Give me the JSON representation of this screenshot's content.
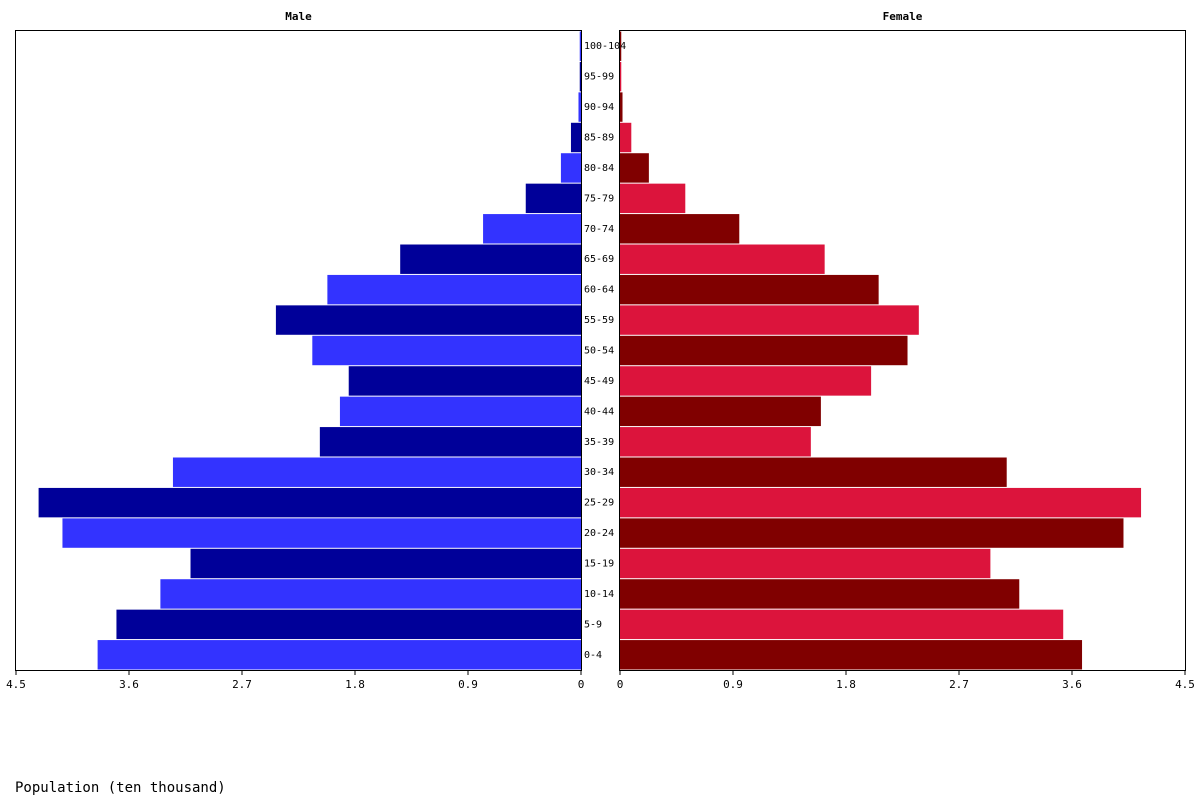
{
  "chart_data": {
    "type": "pyramid",
    "xlabel": "Population (ten thousand)",
    "categories": [
      "0-4",
      "5-9",
      "10-14",
      "15-19",
      "20-24",
      "25-29",
      "30-34",
      "35-39",
      "40-44",
      "45-49",
      "50-54",
      "55-59",
      "60-64",
      "65-69",
      "70-74",
      "75-79",
      "80-84",
      "85-89",
      "90-94",
      "95-99",
      "100-104"
    ],
    "series": [
      {
        "name": "Male",
        "colors": [
          "#3333ff",
          "#000099"
        ],
        "values": [
          3.85,
          3.7,
          3.35,
          3.11,
          4.13,
          4.32,
          3.25,
          2.08,
          1.92,
          1.85,
          2.14,
          2.43,
          2.02,
          1.44,
          0.78,
          0.44,
          0.16,
          0.08,
          0.02,
          0.01,
          0.01
        ]
      },
      {
        "name": "Female",
        "colors": [
          "#800000",
          "#dc143c"
        ],
        "values": [
          3.68,
          3.53,
          3.18,
          2.95,
          4.01,
          4.15,
          3.08,
          1.52,
          1.6,
          2.0,
          2.29,
          2.38,
          2.06,
          1.63,
          0.95,
          0.52,
          0.23,
          0.09,
          0.02,
          0.01,
          0.01
        ]
      }
    ],
    "xlim": [
      0,
      4.5
    ],
    "xticks": [
      0,
      0.9,
      1.8,
      2.7,
      3.6,
      4.5
    ]
  }
}
